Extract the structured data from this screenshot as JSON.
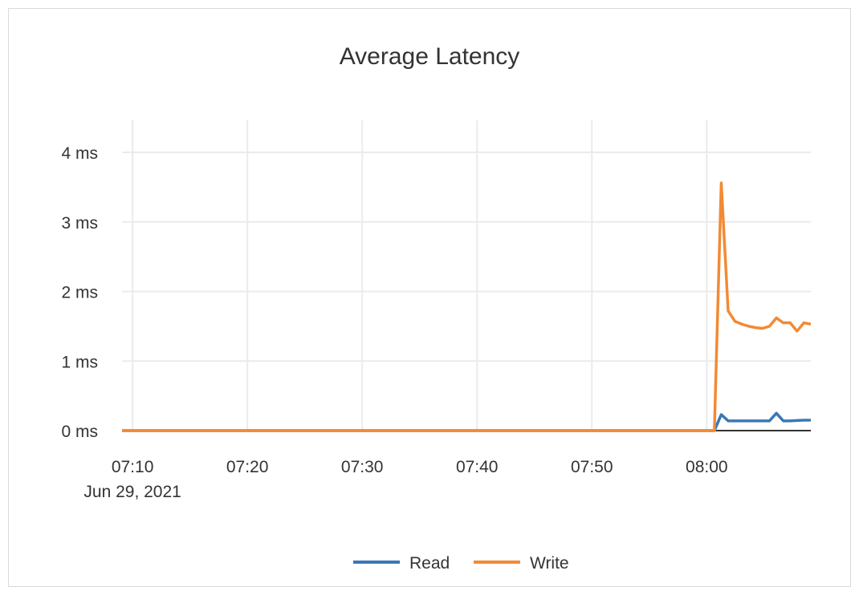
{
  "chart_data": {
    "type": "line",
    "title": "Average Latency",
    "xlabel": "",
    "ylabel": "",
    "x_ticks": [
      "07:10",
      "07:20",
      "07:30",
      "07:40",
      "07:50",
      "08:00"
    ],
    "x_tick_date": "Jun 29, 2021",
    "x_range": [
      "07:09:05",
      "08:09:04"
    ],
    "y_ticks": [
      "0 ms",
      "1 ms",
      "2 ms",
      "3 ms",
      "4 ms"
    ],
    "ylim": [
      0,
      4.6
    ],
    "grid": true,
    "legend": "bottom",
    "x": [
      "07:09:05",
      "08:00:40",
      "08:01:16",
      "08:01:52",
      "08:02:28",
      "08:03:04",
      "08:03:40",
      "08:04:16",
      "08:04:52",
      "08:05:28",
      "08:06:04",
      "08:06:40",
      "08:07:16",
      "08:07:52",
      "08:08:28",
      "08:09:04"
    ],
    "series": [
      {
        "name": "Read",
        "color": "#3a78b5",
        "values": [
          0,
          0,
          0.23,
          0.14,
          0.14,
          0.14,
          0.14,
          0.14,
          0.14,
          0.14,
          0.25,
          0.14,
          0.14,
          0.145,
          0.15,
          0.15
        ]
      },
      {
        "name": "Write",
        "color": "#f28a35",
        "values": [
          0,
          0,
          3.56,
          1.72,
          1.57,
          1.53,
          1.5,
          1.48,
          1.47,
          1.5,
          1.62,
          1.55,
          1.55,
          1.43,
          1.55,
          1.53
        ]
      }
    ]
  }
}
